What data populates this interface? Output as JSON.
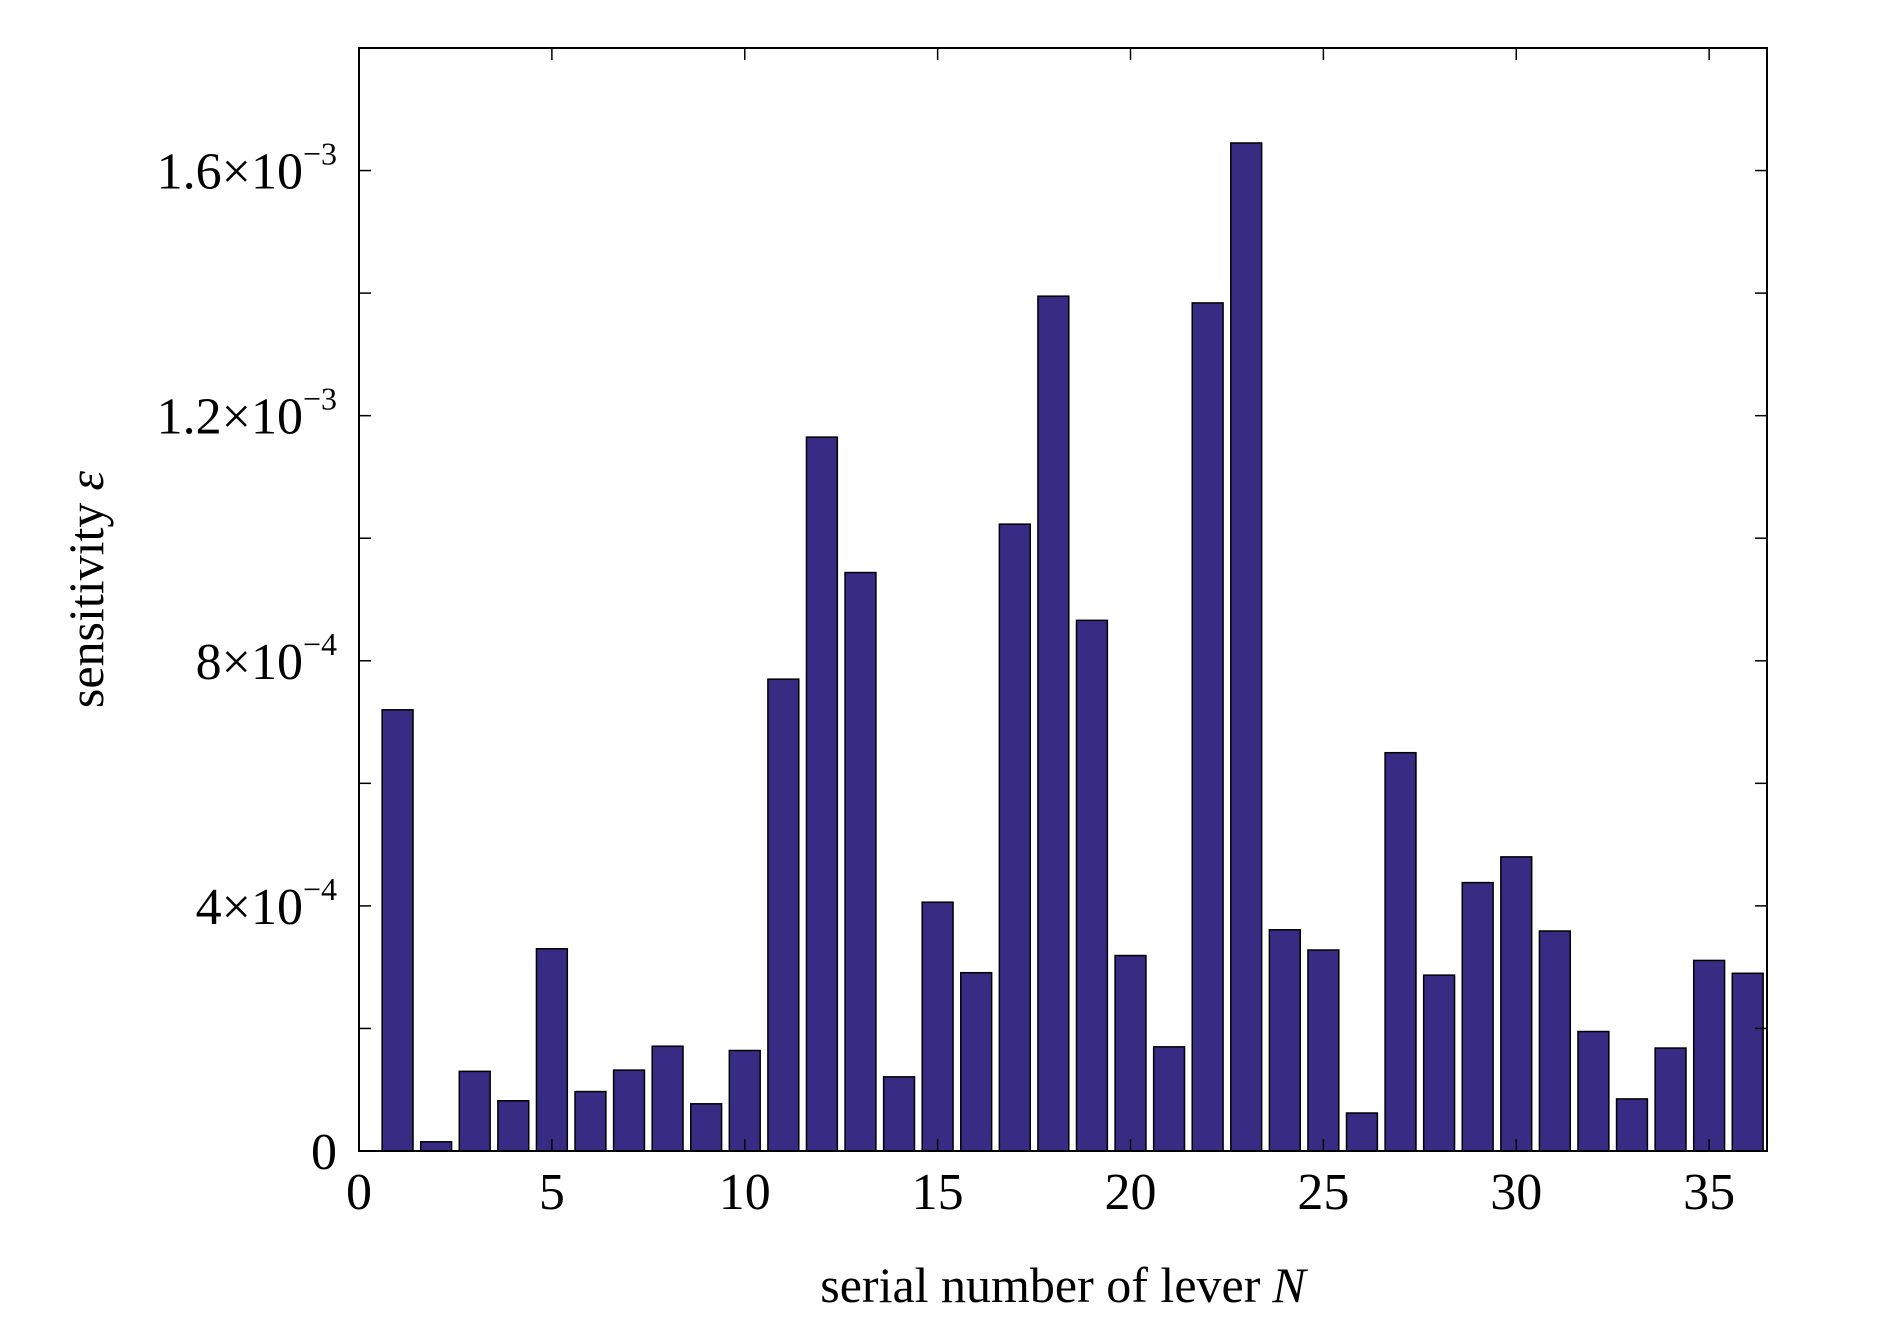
{
  "chart_data": {
    "type": "bar",
    "xlabel": "serial number of lever",
    "xlabel_var": "N",
    "ylabel": "sensitivity",
    "ylabel_var": "ε",
    "xlim": [
      0,
      36.5
    ],
    "ylim": [
      0,
      0.0018
    ],
    "x_ticks": [
      0,
      5,
      10,
      15,
      20,
      25,
      30,
      35
    ],
    "y_ticks": [
      {
        "value": 0,
        "mantissa": "0",
        "exponent": ""
      },
      {
        "value": 0.0002,
        "mantissa": "",
        "exponent": ""
      },
      {
        "value": 0.0004,
        "mantissa": "4×10",
        "exponent": "−4"
      },
      {
        "value": 0.0006,
        "mantissa": "",
        "exponent": ""
      },
      {
        "value": 0.0008,
        "mantissa": "8×10",
        "exponent": "−4"
      },
      {
        "value": 0.001,
        "mantissa": "",
        "exponent": ""
      },
      {
        "value": 0.0012,
        "mantissa": "1.2×10",
        "exponent": "−3"
      },
      {
        "value": 0.0014,
        "mantissa": "",
        "exponent": ""
      },
      {
        "value": 0.0016,
        "mantissa": "1.6×10",
        "exponent": "−3"
      }
    ],
    "grid": false,
    "bar_color": "#372b84",
    "bar_edge_color": "#000000",
    "x": [
      1,
      2,
      3,
      4,
      5,
      6,
      7,
      8,
      9,
      10,
      11,
      12,
      13,
      14,
      15,
      16,
      17,
      18,
      19,
      20,
      21,
      22,
      23,
      24,
      25,
      26,
      27,
      28,
      29,
      30,
      31,
      32,
      33,
      34,
      35,
      36
    ],
    "values": [
      0.00072,
      1.5e-05,
      0.00013,
      8.2e-05,
      0.00033,
      9.7e-05,
      0.000132,
      0.000171,
      7.7e-05,
      0.000164,
      0.00077,
      0.001165,
      0.000944,
      0.000121,
      0.000406,
      0.000291,
      0.001023,
      0.001395,
      0.000866,
      0.000319,
      0.00017,
      0.001384,
      0.001645,
      0.000361,
      0.000328,
      6.2e-05,
      0.00065,
      0.000287,
      0.000438,
      0.00048,
      0.000359,
      0.000195,
      8.5e-05,
      0.000168,
      0.000311,
      0.00029
    ]
  }
}
